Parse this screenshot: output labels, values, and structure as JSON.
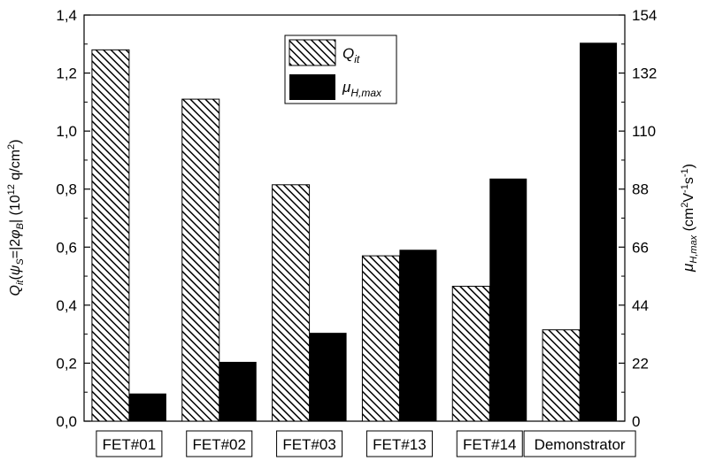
{
  "chart_data": {
    "type": "bar",
    "title": "",
    "categories": [
      "FET#01",
      "FET#02",
      "FET#03",
      "FET#13",
      "FET#14",
      "Demonstrator"
    ],
    "series": [
      {
        "name": "Q_it",
        "axis": "left",
        "pattern": "hatched",
        "values": [
          1.28,
          1.11,
          0.815,
          0.57,
          0.465,
          0.315
        ]
      },
      {
        "name": "μ_H,max",
        "axis": "right",
        "color": "#000000",
        "values": [
          10.5,
          22.5,
          33.5,
          65,
          92,
          143.5
        ]
      }
    ],
    "y_left": {
      "label": "Q_it(ψ_S=|2φ_B|) (10^12 q/cm^2)",
      "range": [
        0,
        1.4
      ],
      "ticks": [
        "0,0",
        "0,2",
        "0,4",
        "0,6",
        "0,8",
        "1,0",
        "1,2",
        "1,4"
      ]
    },
    "y_right": {
      "label": "μ_H,max (cm^2V^-1s^-1)",
      "range": [
        0,
        154
      ],
      "ticks": [
        "0",
        "22",
        "44",
        "66",
        "88",
        "110",
        "132",
        "154"
      ]
    },
    "legend": {
      "placement": "top-center",
      "entries": [
        {
          "base": "Q",
          "sub": "it"
        },
        {
          "base": "μ",
          "sub": "H,max"
        }
      ]
    },
    "grid": false
  }
}
